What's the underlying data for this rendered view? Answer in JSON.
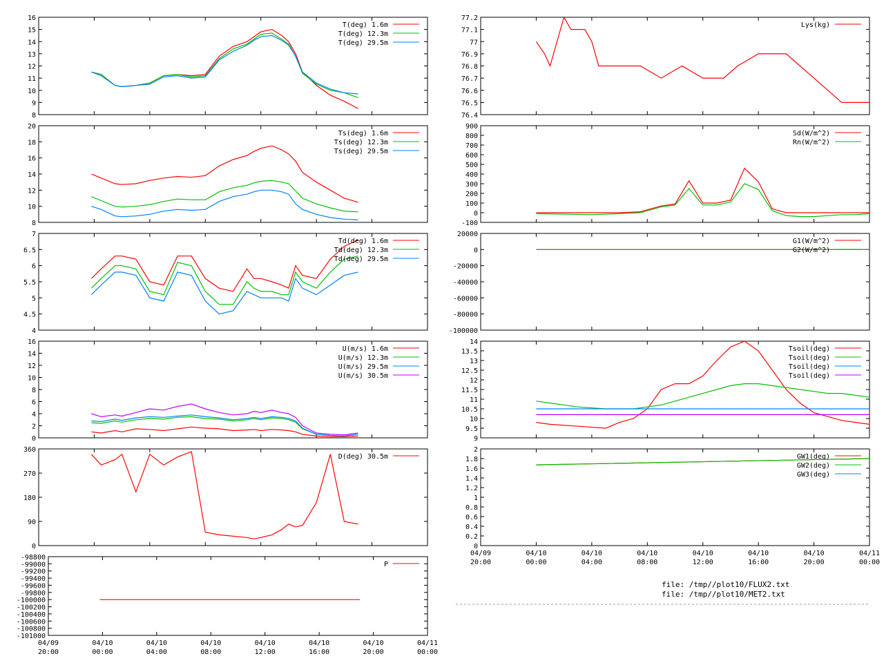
{
  "x_axis": {
    "time_labels": [
      [
        "04/09",
        "20:00"
      ],
      [
        "04/10",
        "00:00"
      ],
      [
        "04/10",
        "04:00"
      ],
      [
        "04/10",
        "08:00"
      ],
      [
        "04/10",
        "12:00"
      ],
      [
        "04/10",
        "16:00"
      ],
      [
        "04/10",
        "20:00"
      ],
      [
        "04/11",
        "00:00"
      ]
    ],
    "range_hours": [
      0,
      28
    ]
  },
  "files": [
    "file: /tmp//plot10/FLUX2.txt",
    "file: /tmp//plot10/MET2.txt"
  ],
  "colors": {
    "red": "#ff0000",
    "green": "#00c000",
    "blue": "#0080ff",
    "purple": "#c000ff"
  },
  "chart_data": [
    {
      "id": "T",
      "type": "line",
      "ylim": [
        8,
        16
      ],
      "yticks": [
        "8",
        "9",
        "10",
        "11",
        "12",
        "13",
        "14",
        "15",
        "16"
      ],
      "x_hours": [
        3.8,
        4.5,
        5.5,
        6,
        7,
        8,
        9,
        10,
        11,
        12,
        13,
        14,
        15,
        15.5,
        16,
        16.8,
        17.5,
        18,
        18.5,
        19,
        20,
        21,
        22,
        23
      ],
      "series": [
        {
          "name": "T(deg)  1.6m",
          "color": "#ff0000",
          "values": [
            11.5,
            11.3,
            10.4,
            10.3,
            10.4,
            10.6,
            11.2,
            11.3,
            11.2,
            11.3,
            12.8,
            13.6,
            14.0,
            14.4,
            14.8,
            15.0,
            14.5,
            14.0,
            13.0,
            11.5,
            10.4,
            9.6,
            9.1,
            8.5
          ]
        },
        {
          "name": "T(deg) 12.3m",
          "color": "#00c000",
          "values": [
            11.5,
            11.3,
            10.4,
            10.3,
            10.4,
            10.6,
            11.2,
            11.3,
            11.1,
            11.2,
            12.6,
            13.4,
            13.8,
            14.2,
            14.6,
            14.7,
            14.2,
            13.8,
            12.8,
            11.4,
            10.5,
            10.0,
            9.8,
            9.4
          ]
        },
        {
          "name": "T(deg) 29.5m",
          "color": "#0080ff",
          "values": [
            11.5,
            11.2,
            10.4,
            10.3,
            10.4,
            10.5,
            11.1,
            11.2,
            11.0,
            11.1,
            12.5,
            13.2,
            13.7,
            14.1,
            14.4,
            14.5,
            14.1,
            13.7,
            12.8,
            11.5,
            10.6,
            10.1,
            9.8,
            9.7
          ]
        }
      ]
    },
    {
      "id": "Ts",
      "type": "line",
      "ylim": [
        8,
        20
      ],
      "yticks": [
        "8",
        "10",
        "12",
        "14",
        "16",
        "18",
        "20"
      ],
      "x_hours": [
        3.8,
        4.5,
        5.5,
        6,
        7,
        8,
        9,
        10,
        11,
        12,
        13,
        14,
        15,
        15.5,
        16,
        16.8,
        17.5,
        18,
        18.5,
        19,
        20,
        21,
        22,
        23
      ],
      "series": [
        {
          "name": "Ts(deg)  1.6m",
          "color": "#ff0000",
          "values": [
            14.0,
            13.5,
            12.8,
            12.7,
            12.8,
            13.2,
            13.5,
            13.7,
            13.6,
            13.8,
            15.0,
            15.8,
            16.3,
            16.8,
            17.2,
            17.5,
            17.0,
            16.5,
            15.6,
            14.2,
            13.0,
            12.0,
            11.0,
            10.5
          ]
        },
        {
          "name": "Ts(deg) 12.3m",
          "color": "#00c000",
          "values": [
            11.2,
            10.7,
            10.0,
            9.9,
            10.0,
            10.2,
            10.6,
            10.9,
            10.8,
            10.8,
            11.8,
            12.3,
            12.6,
            12.9,
            13.1,
            13.2,
            13.0,
            12.8,
            11.9,
            11.0,
            10.3,
            9.8,
            9.4,
            9.3
          ]
        },
        {
          "name": "Ts(deg) 29.5m",
          "color": "#0080ff",
          "values": [
            10.0,
            9.6,
            8.8,
            8.7,
            8.8,
            9.0,
            9.4,
            9.6,
            9.5,
            9.6,
            10.6,
            11.2,
            11.5,
            11.8,
            12.0,
            12.0,
            11.8,
            11.5,
            10.3,
            9.6,
            9.0,
            8.6,
            8.4,
            8.3
          ]
        }
      ]
    },
    {
      "id": "Td",
      "type": "line",
      "ylim": [
        4,
        7
      ],
      "yticks": [
        "4",
        "4.5",
        "5",
        "5.5",
        "6",
        "6.5",
        "7"
      ],
      "x_hours": [
        3.8,
        4.5,
        5.5,
        6,
        7,
        8,
        9,
        10,
        11,
        12,
        13,
        14,
        15,
        15.5,
        16,
        16.8,
        17.5,
        18,
        18.5,
        19,
        20,
        21,
        22,
        23
      ],
      "series": [
        {
          "name": "Td(deg)  1.6m",
          "color": "#ff0000",
          "values": [
            5.6,
            5.9,
            6.3,
            6.3,
            6.2,
            5.5,
            5.4,
            6.3,
            6.3,
            5.6,
            5.3,
            5.2,
            5.9,
            5.6,
            5.6,
            5.5,
            5.4,
            5.3,
            6.0,
            5.7,
            5.6,
            6.2,
            6.6,
            6.8
          ]
        },
        {
          "name": "Td(deg) 12.3m",
          "color": "#00c000",
          "values": [
            5.3,
            5.6,
            6.0,
            6.0,
            5.9,
            5.2,
            5.1,
            6.1,
            6.0,
            5.2,
            4.8,
            4.8,
            5.5,
            5.3,
            5.2,
            5.2,
            5.1,
            5.1,
            5.8,
            5.5,
            5.3,
            5.8,
            6.2,
            6.3
          ]
        },
        {
          "name": "Td(deg) 29.5m",
          "color": "#0080ff",
          "values": [
            5.1,
            5.4,
            5.8,
            5.8,
            5.7,
            5.0,
            4.9,
            5.8,
            5.7,
            4.9,
            4.5,
            4.6,
            5.2,
            5.1,
            5.0,
            5.0,
            5.0,
            4.9,
            5.6,
            5.3,
            5.1,
            5.4,
            5.7,
            5.8
          ]
        }
      ]
    },
    {
      "id": "U",
      "type": "line",
      "ylim": [
        0,
        16
      ],
      "yticks": [
        "0",
        "2",
        "4",
        "6",
        "8",
        "10",
        "12",
        "14",
        "16"
      ],
      "x_hours": [
        3.8,
        4.5,
        5.5,
        6,
        7,
        8,
        9,
        10,
        11,
        12,
        13,
        14,
        15,
        15.5,
        16,
        16.8,
        17.5,
        18,
        18.5,
        19,
        20,
        21,
        22,
        23
      ],
      "series": [
        {
          "name": "U(m/s)  1.6m",
          "color": "#ff0000",
          "values": [
            1.0,
            0.8,
            1.2,
            1.0,
            1.5,
            1.4,
            1.2,
            1.5,
            1.8,
            1.6,
            1.5,
            1.2,
            1.3,
            1.4,
            1.2,
            1.4,
            1.3,
            1.2,
            1.0,
            0.6,
            0.3,
            0.2,
            0.2,
            0.3
          ]
        },
        {
          "name": "U(m/s) 12.3m",
          "color": "#00c000",
          "values": [
            2.5,
            2.4,
            2.8,
            2.6,
            3.0,
            3.2,
            3.1,
            3.4,
            3.5,
            3.2,
            3.1,
            2.8,
            3.0,
            3.2,
            3.0,
            3.3,
            3.2,
            3.0,
            2.6,
            1.5,
            0.6,
            0.4,
            0.3,
            0.6
          ]
        },
        {
          "name": "U(m/s) 29.5m",
          "color": "#0080ff",
          "values": [
            2.8,
            2.7,
            3.1,
            2.9,
            3.3,
            3.5,
            3.4,
            3.6,
            3.8,
            3.5,
            3.3,
            3.0,
            3.2,
            3.4,
            3.2,
            3.5,
            3.4,
            3.2,
            2.8,
            1.6,
            0.6,
            0.4,
            0.3,
            0.6
          ]
        },
        {
          "name": "U(m/s) 30.5m",
          "color": "#c000ff",
          "values": [
            4.0,
            3.5,
            3.8,
            3.6,
            4.2,
            4.8,
            4.6,
            5.2,
            5.6,
            4.8,
            4.2,
            3.8,
            4.0,
            4.4,
            4.2,
            4.6,
            4.2,
            4.0,
            3.4,
            2.0,
            0.8,
            0.6,
            0.5,
            0.8
          ]
        }
      ]
    },
    {
      "id": "D",
      "type": "line",
      "ylim": [
        0,
        360
      ],
      "yticks": [
        "0",
        "90",
        "180",
        "270",
        "360"
      ],
      "x_hours": [
        3.8,
        4.5,
        5.5,
        6,
        7,
        8,
        9,
        10,
        11,
        12,
        13,
        14,
        15,
        15.5,
        16,
        16.8,
        17.5,
        18,
        18.5,
        19,
        20,
        21,
        22,
        23
      ],
      "series": [
        {
          "name": "D(deg)  30.5m",
          "color": "#ff0000",
          "values": [
            340,
            300,
            320,
            340,
            200,
            340,
            300,
            330,
            350,
            50,
            40,
            35,
            30,
            25,
            30,
            40,
            60,
            80,
            70,
            75,
            160,
            340,
            90,
            80
          ]
        }
      ]
    },
    {
      "id": "P",
      "type": "line",
      "ylim": [
        -101000,
        -98800
      ],
      "yticks": [
        "-101000",
        "-100800",
        "-100600",
        "-100400",
        "-100200",
        "-100000",
        "-99800",
        "-99600",
        "-99400",
        "-99200",
        "-99000",
        "-98800"
      ],
      "x_hours": [
        3.8,
        23
      ],
      "series": [
        {
          "name": "P",
          "color": "#ff0000",
          "values": [
            -100000,
            -100000
          ]
        }
      ]
    },
    {
      "id": "Lys",
      "type": "line",
      "ylim": [
        76.4,
        77.2
      ],
      "yticks": [
        "76.4",
        "76.5",
        "76.6",
        "76.7",
        "76.8",
        "76.9",
        "77",
        "77.1",
        "77.2"
      ],
      "x_hours": [
        4,
        4.6,
        5,
        6,
        6.5,
        7.5,
        8,
        8.5,
        10,
        11.5,
        13,
        14.5,
        16,
        17.5,
        18.5,
        20,
        21,
        22,
        23,
        24,
        25,
        26,
        27,
        28
      ],
      "series": [
        {
          "name": "Lys(kg)",
          "color": "#ff0000",
          "values": [
            77.0,
            76.9,
            76.8,
            77.2,
            77.1,
            77.1,
            77.0,
            76.8,
            76.8,
            76.8,
            76.7,
            76.8,
            76.7,
            76.7,
            76.8,
            76.9,
            76.9,
            76.9,
            76.8,
            76.7,
            76.6,
            76.5,
            76.5,
            76.5
          ]
        }
      ]
    },
    {
      "id": "Sd",
      "type": "line",
      "ylim": [
        -100,
        900
      ],
      "yticks": [
        "-100",
        "0",
        "100",
        "200",
        "300",
        "400",
        "500",
        "600",
        "700",
        "800",
        "900"
      ],
      "x_hours": [
        4,
        8,
        10,
        11.5,
        12,
        13,
        14,
        15,
        16,
        17,
        18,
        19,
        20,
        21,
        22,
        23,
        24,
        25,
        26,
        27,
        28
      ],
      "series": [
        {
          "name": "Sd(W/m^2)",
          "color": "#ff0000",
          "values": [
            0,
            0,
            0,
            10,
            30,
            70,
            90,
            330,
            100,
            100,
            130,
            460,
            320,
            40,
            0,
            0,
            0,
            0,
            0,
            0,
            0
          ]
        },
        {
          "name": "Rn(W/m^2)",
          "color": "#00c000",
          "values": [
            -10,
            -20,
            -10,
            0,
            20,
            60,
            80,
            250,
            80,
            80,
            110,
            300,
            240,
            20,
            -30,
            -40,
            -40,
            -30,
            -20,
            -20,
            -10
          ]
        }
      ]
    },
    {
      "id": "G",
      "type": "line",
      "ylim": [
        -100000,
        20000
      ],
      "yticks": [
        "-100000",
        "-80000",
        "-60000",
        "-40000",
        "-20000",
        "0",
        "20000"
      ],
      "x_hours": [
        4,
        8,
        12,
        16,
        20,
        24,
        28
      ],
      "series": [
        {
          "name": "G1(W/m^2)",
          "color": "#ff0000",
          "values": [
            0,
            0,
            0,
            0,
            0,
            0,
            0
          ]
        },
        {
          "name": "G2(W/m^2)",
          "color": "#00c000",
          "values": [
            0,
            0,
            0,
            0,
            0,
            0,
            0
          ]
        }
      ]
    },
    {
      "id": "Tsoil",
      "type": "line",
      "ylim": [
        9,
        14
      ],
      "yticks": [
        "9",
        "9.5",
        "10",
        "10.5",
        "11",
        "11.5",
        "12",
        "12.5",
        "13",
        "13.5",
        "14"
      ],
      "x_hours": [
        4,
        5,
        7,
        9,
        10,
        11,
        12,
        13,
        14,
        15,
        16,
        17,
        18,
        19,
        20,
        21,
        22,
        23,
        24,
        25,
        26,
        27,
        28
      ],
      "series": [
        {
          "name": "Tsoil(deg)",
          "color": "#ff0000",
          "values": [
            9.8,
            9.7,
            9.6,
            9.5,
            9.8,
            10.0,
            10.5,
            11.5,
            11.8,
            11.8,
            12.2,
            13.0,
            13.7,
            14.0,
            13.5,
            12.5,
            11.5,
            10.8,
            10.3,
            10.1,
            9.9,
            9.8,
            9.7
          ]
        },
        {
          "name": "Tsoil(deg)",
          "color": "#00c000",
          "values": [
            10.9,
            10.8,
            10.6,
            10.5,
            10.5,
            10.5,
            10.6,
            10.7,
            10.9,
            11.1,
            11.3,
            11.5,
            11.7,
            11.8,
            11.8,
            11.7,
            11.6,
            11.5,
            11.4,
            11.3,
            11.3,
            11.2,
            11.1
          ]
        },
        {
          "name": "Tsoil(deg)",
          "color": "#0080ff",
          "values": [
            10.5,
            10.5,
            10.5,
            10.5,
            10.5,
            10.5,
            10.5,
            10.5,
            10.5,
            10.5,
            10.5,
            10.5,
            10.5,
            10.5,
            10.5,
            10.5,
            10.5,
            10.5,
            10.5,
            10.5,
            10.5,
            10.5,
            10.5
          ]
        },
        {
          "name": "Tsoil(deg)",
          "color": "#c000ff",
          "values": [
            10.2,
            10.2,
            10.2,
            10.2,
            10.2,
            10.2,
            10.2,
            10.2,
            10.2,
            10.2,
            10.2,
            10.2,
            10.2,
            10.2,
            10.2,
            10.2,
            10.2,
            10.2,
            10.2,
            10.2,
            10.2,
            10.2,
            10.2
          ]
        }
      ]
    },
    {
      "id": "GW",
      "type": "line",
      "ylim": [
        0,
        2
      ],
      "yticks": [
        "0",
        "0.2",
        "0.4",
        "0.6",
        "0.8",
        "1",
        "1.2",
        "1.4",
        "1.6",
        "1.8",
        "2"
      ],
      "x_hours": [
        4,
        28
      ],
      "series": [
        {
          "name": "GW1(deg)",
          "color": "#ff0000",
          "values": [
            1.67,
            1.8
          ]
        },
        {
          "name": "GW2(deg)",
          "color": "#00c000",
          "values": [
            1.67,
            1.8
          ]
        },
        {
          "name": "GW3(deg)",
          "color": "#0080ff",
          "values": []
        }
      ]
    }
  ]
}
